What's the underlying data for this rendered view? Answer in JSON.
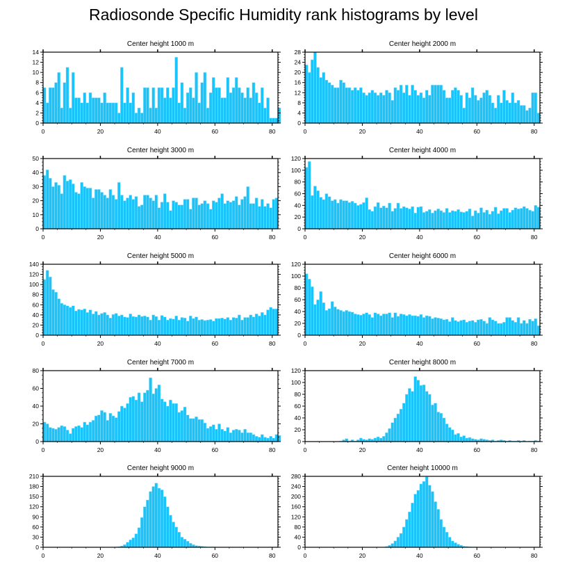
{
  "title": "Radiosonde Specific Humidity rank histograms by level",
  "colors": {
    "bar": "#1ac4fa",
    "bar_edge": "#9be4fb",
    "axis": "#000000",
    "background": "#ffffff"
  },
  "chart_data": [
    {
      "type": "bar",
      "title": "Center height 1000 m",
      "xlim": [
        0,
        82
      ],
      "xticks": [
        0,
        20,
        40,
        60,
        80
      ],
      "ylim": [
        0,
        14
      ],
      "yticks": [
        0,
        2,
        4,
        6,
        8,
        10,
        12,
        14
      ],
      "values": [
        7,
        4,
        7,
        7,
        8,
        10,
        3,
        8,
        11,
        3,
        10,
        5,
        5,
        4,
        6,
        4,
        6,
        5,
        5,
        5,
        4,
        6,
        4,
        4,
        4,
        4,
        2,
        11,
        4,
        7,
        4,
        6,
        2,
        3,
        2,
        7,
        7,
        3,
        7,
        3,
        7,
        7,
        5,
        7,
        5,
        7,
        13,
        4,
        8,
        3,
        6,
        7,
        5,
        10,
        4,
        8,
        10,
        3,
        6,
        9,
        7,
        7,
        5,
        5,
        9,
        6,
        7,
        9,
        7,
        6,
        5,
        7,
        5,
        8,
        6,
        4,
        7,
        3,
        5,
        1,
        1,
        1,
        3
      ]
    },
    {
      "type": "bar",
      "title": "Center height 2000 m",
      "xlim": [
        0,
        82
      ],
      "xticks": [
        0,
        20,
        40,
        60,
        80
      ],
      "ylim": [
        0,
        28
      ],
      "yticks": [
        0,
        4,
        8,
        12,
        16,
        20,
        24,
        28
      ],
      "values": [
        23,
        20,
        25,
        28,
        22,
        18,
        20,
        17,
        16,
        15,
        14,
        14,
        17,
        16,
        14,
        14,
        13,
        14,
        13,
        14,
        12,
        11,
        12,
        13,
        12,
        11,
        12,
        11,
        13,
        12,
        9,
        14,
        13,
        15,
        12,
        15,
        11,
        15,
        13,
        11,
        12,
        10,
        13,
        11,
        15,
        15,
        15,
        15,
        13,
        10,
        10,
        13,
        14,
        13,
        11,
        6,
        12,
        10,
        14,
        11,
        9,
        10,
        12,
        13,
        11,
        8,
        6,
        11,
        8,
        13,
        9,
        8,
        12,
        8,
        9,
        7,
        7,
        5,
        6,
        12,
        12,
        4
      ]
    },
    {
      "type": "bar",
      "title": "Center height 3000 m",
      "xlim": [
        0,
        82
      ],
      "xticks": [
        0,
        20,
        40,
        60,
        80
      ],
      "ylim": [
        0,
        50
      ],
      "yticks": [
        0,
        10,
        20,
        30,
        40,
        50
      ],
      "values": [
        38,
        42,
        36,
        30,
        33,
        31,
        25,
        38,
        34,
        35,
        32,
        26,
        25,
        33,
        30,
        29,
        29,
        22,
        28,
        28,
        26,
        24,
        22,
        28,
        24,
        21,
        33,
        24,
        20,
        22,
        24,
        21,
        23,
        16,
        17,
        24,
        24,
        22,
        20,
        24,
        15,
        19,
        25,
        19,
        13,
        20,
        19,
        17,
        17,
        21,
        21,
        14,
        22,
        22,
        17,
        18,
        20,
        18,
        14,
        20,
        19,
        22,
        25,
        18,
        20,
        19,
        20,
        23,
        17,
        21,
        23,
        30,
        18,
        18,
        22,
        16,
        21,
        16,
        18,
        15,
        21,
        22
      ]
    },
    {
      "type": "bar",
      "title": "Center height 4000 m",
      "xlim": [
        0,
        82
      ],
      "xticks": [
        0,
        20,
        40,
        60,
        80
      ],
      "ylim": [
        0,
        120
      ],
      "yticks": [
        0,
        20,
        40,
        60,
        80,
        100,
        120
      ],
      "values": [
        105,
        115,
        57,
        73,
        65,
        54,
        50,
        60,
        55,
        48,
        50,
        44,
        50,
        48,
        48,
        45,
        47,
        44,
        40,
        42,
        45,
        53,
        33,
        30,
        38,
        45,
        36,
        39,
        36,
        44,
        30,
        35,
        44,
        35,
        38,
        36,
        34,
        38,
        27,
        37,
        38,
        28,
        30,
        33,
        27,
        31,
        34,
        31,
        28,
        35,
        28,
        31,
        30,
        33,
        29,
        28,
        30,
        34,
        22,
        31,
        27,
        36,
        28,
        32,
        25,
        30,
        37,
        26,
        31,
        35,
        35,
        28,
        32,
        36,
        34,
        35,
        38,
        35,
        32,
        30,
        40,
        37
      ]
    },
    {
      "type": "bar",
      "title": "Center height 5000 m",
      "xlim": [
        0,
        82
      ],
      "xticks": [
        0,
        20,
        40,
        60,
        80
      ],
      "ylim": [
        0,
        140
      ],
      "yticks": [
        0,
        20,
        40,
        60,
        80,
        100,
        120,
        140
      ],
      "values": [
        110,
        128,
        115,
        90,
        85,
        72,
        63,
        60,
        58,
        55,
        58,
        48,
        51,
        50,
        52,
        45,
        50,
        42,
        47,
        40,
        43,
        45,
        40,
        34,
        41,
        43,
        38,
        40,
        36,
        35,
        42,
        37,
        36,
        40,
        37,
        38,
        36,
        30,
        40,
        37,
        30,
        39,
        36,
        30,
        33,
        32,
        38,
        30,
        35,
        34,
        28,
        38,
        33,
        36,
        30,
        31,
        29,
        30,
        31,
        28,
        33,
        33,
        34,
        32,
        35,
        30,
        35,
        34,
        40,
        30,
        35,
        35,
        40,
        36,
        42,
        38,
        45,
        40,
        50,
        55,
        52,
        52
      ]
    },
    {
      "type": "bar",
      "title": "Center height 6000 m",
      "xlim": [
        0,
        82
      ],
      "xticks": [
        0,
        20,
        40,
        60,
        80
      ],
      "ylim": [
        0,
        120
      ],
      "yticks": [
        0,
        20,
        40,
        60,
        80,
        100,
        120
      ],
      "values": [
        104,
        95,
        82,
        52,
        60,
        74,
        55,
        42,
        45,
        57,
        48,
        44,
        42,
        40,
        42,
        40,
        39,
        36,
        35,
        34,
        36,
        38,
        35,
        30,
        38,
        36,
        33,
        36,
        36,
        38,
        30,
        38,
        32,
        36,
        35,
        33,
        35,
        33,
        33,
        32,
        35,
        30,
        33,
        32,
        28,
        30,
        29,
        28,
        26,
        27,
        23,
        30,
        25,
        23,
        25,
        26,
        22,
        24,
        25,
        22,
        26,
        27,
        24,
        20,
        30,
        26,
        24,
        20,
        20,
        22,
        30,
        30,
        25,
        22,
        30,
        20,
        25,
        20,
        27,
        24,
        28,
        16
      ]
    },
    {
      "type": "bar",
      "title": "Center height 7000 m",
      "xlim": [
        0,
        82
      ],
      "xticks": [
        0,
        20,
        40,
        60,
        80
      ],
      "ylim": [
        0,
        80
      ],
      "yticks": [
        0,
        20,
        40,
        60,
        80
      ],
      "values": [
        22,
        20,
        16,
        15,
        14,
        16,
        18,
        17,
        13,
        9,
        15,
        17,
        18,
        16,
        22,
        19,
        22,
        24,
        29,
        30,
        35,
        33,
        24,
        32,
        29,
        27,
        34,
        40,
        38,
        43,
        50,
        51,
        47,
        55,
        45,
        55,
        58,
        72,
        54,
        60,
        64,
        48,
        45,
        40,
        47,
        43,
        43,
        33,
        35,
        39,
        30,
        26,
        26,
        28,
        25,
        25,
        21,
        15,
        17,
        19,
        14,
        20,
        14,
        12,
        16,
        10,
        13,
        14,
        13,
        10,
        14,
        10,
        10,
        8,
        6,
        5,
        8,
        5,
        4,
        6,
        4,
        8,
        7
      ]
    },
    {
      "type": "bar",
      "title": "Center height 8000 m",
      "xlim": [
        0,
        82
      ],
      "xticks": [
        0,
        20,
        40,
        60,
        80
      ],
      "ylim": [
        0,
        120
      ],
      "yticks": [
        0,
        20,
        40,
        60,
        80,
        100,
        120
      ],
      "values": [
        0,
        0,
        0,
        0,
        0,
        0,
        0,
        0,
        0,
        0,
        0,
        0,
        1,
        3,
        5,
        1,
        3,
        1,
        3,
        6,
        4,
        3,
        5,
        4,
        6,
        8,
        6,
        9,
        15,
        22,
        32,
        40,
        47,
        55,
        65,
        80,
        90,
        85,
        110,
        104,
        95,
        96,
        85,
        80,
        62,
        65,
        50,
        48,
        40,
        30,
        24,
        20,
        12,
        14,
        8,
        10,
        6,
        7,
        5,
        4,
        3,
        5,
        4,
        3,
        2,
        3,
        1,
        2,
        3,
        2,
        1,
        2,
        1,
        1,
        2,
        1,
        2,
        0,
        1,
        1,
        2,
        1,
        0
      ]
    },
    {
      "type": "bar",
      "title": "Center height 9000 m",
      "xlim": [
        0,
        82
      ],
      "xticks": [
        0,
        20,
        40,
        60,
        80
      ],
      "ylim": [
        0,
        210
      ],
      "yticks": [
        0,
        30,
        60,
        90,
        120,
        150,
        180,
        210
      ],
      "values": [
        0,
        0,
        0,
        0,
        0,
        0,
        0,
        0,
        0,
        0,
        0,
        0,
        0,
        0,
        0,
        0,
        0,
        0,
        0,
        0,
        0,
        0,
        0,
        0,
        0,
        1,
        2,
        4,
        8,
        15,
        22,
        28,
        40,
        58,
        88,
        120,
        140,
        165,
        180,
        190,
        175,
        170,
        150,
        120,
        95,
        75,
        60,
        45,
        30,
        24,
        18,
        12,
        8,
        5,
        4,
        3,
        2,
        1,
        1,
        1,
        0,
        0,
        0,
        0,
        0,
        0,
        0,
        0,
        0,
        0,
        0,
        0,
        0,
        0,
        0,
        0,
        0,
        0,
        0,
        1,
        0,
        0,
        0
      ]
    },
    {
      "type": "bar",
      "title": "Center height 10000 m",
      "xlim": [
        0,
        82
      ],
      "xticks": [
        0,
        20,
        40,
        60,
        80
      ],
      "ylim": [
        0,
        280
      ],
      "yticks": [
        0,
        40,
        80,
        120,
        160,
        200,
        240,
        280
      ],
      "values": [
        0,
        0,
        0,
        0,
        0,
        0,
        0,
        0,
        0,
        0,
        0,
        0,
        0,
        0,
        0,
        0,
        0,
        0,
        0,
        0,
        0,
        0,
        0,
        0,
        0,
        0,
        0,
        1,
        3,
        8,
        15,
        25,
        40,
        55,
        80,
        110,
        140,
        175,
        210,
        225,
        250,
        260,
        278,
        245,
        220,
        180,
        150,
        110,
        80,
        60,
        40,
        25,
        18,
        12,
        8,
        4,
        3,
        2,
        1,
        1,
        0,
        0,
        0,
        0,
        0,
        0,
        0,
        0,
        0,
        0,
        0,
        0,
        0,
        0,
        0,
        0,
        0,
        0,
        0,
        0,
        0,
        0,
        0
      ]
    }
  ]
}
